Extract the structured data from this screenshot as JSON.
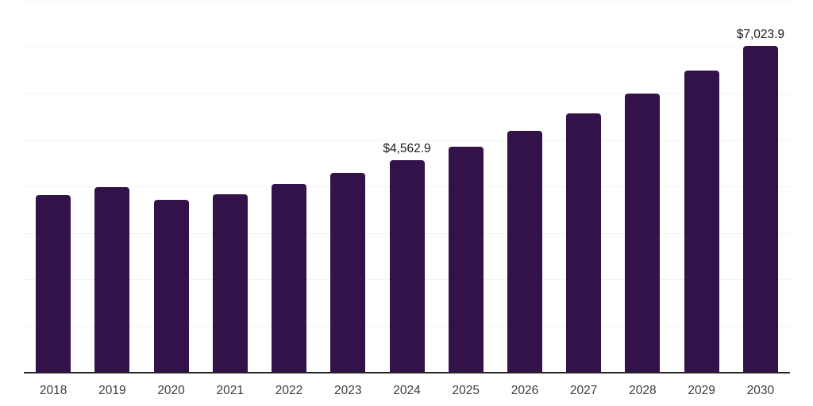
{
  "chart_data": {
    "type": "bar",
    "title": "",
    "xlabel": "",
    "ylabel": "",
    "categories": [
      "2018",
      "2019",
      "2020",
      "2021",
      "2022",
      "2023",
      "2024",
      "2025",
      "2026",
      "2027",
      "2028",
      "2029",
      "2030"
    ],
    "values": [
      3810,
      3975,
      3715,
      3830,
      4045,
      4295,
      4562.9,
      4850,
      5200,
      5575,
      6000,
      6500,
      7023.9
    ],
    "bar_labels": [
      "",
      "",
      "",
      "",
      "",
      "",
      "$4,562.9",
      "",
      "",
      "",
      "",
      "",
      "$7,023.9"
    ],
    "ylim": [
      0,
      8000
    ],
    "gridline_step": 1000,
    "grid": true,
    "legend": false,
    "y_axis_labels_visible": false,
    "colors": {
      "bar": "#331249",
      "gridline": "#f3f3f3",
      "axis_line": "#262626",
      "value_label": "#1a1a1a",
      "tick_label": "#3d3d3d",
      "background": "#ffffff"
    }
  }
}
